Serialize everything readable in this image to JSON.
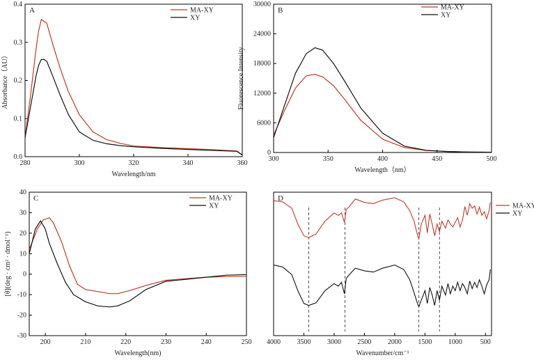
{
  "chart_data": [
    {
      "panel": "A",
      "type": "line",
      "xlabel": "Wavelength/nm",
      "ylabel": "Absorbance（AU）",
      "xlim": [
        280,
        360
      ],
      "ylim": [
        0,
        0.4
      ],
      "xticks": [
        280,
        300,
        320,
        340,
        360
      ],
      "yticks": [
        0.0,
        0.1,
        0.2,
        0.3,
        0.4
      ],
      "ytick_labels": [
        "0.0",
        "0.1",
        "0.2",
        "0.3",
        "0.4"
      ],
      "legend": [
        "MA-XY",
        "XY"
      ],
      "series": [
        {
          "name": "MA-XY",
          "color": "#c0392b",
          "x": [
            280,
            282,
            284,
            285,
            286,
            287,
            288,
            290,
            293,
            296,
            300,
            305,
            310,
            315,
            320,
            330,
            340,
            350,
            358,
            360
          ],
          "y": [
            0.05,
            0.16,
            0.28,
            0.33,
            0.36,
            0.355,
            0.35,
            0.3,
            0.23,
            0.17,
            0.11,
            0.065,
            0.045,
            0.035,
            0.028,
            0.024,
            0.021,
            0.018,
            0.015,
            0.005
          ]
        },
        {
          "name": "XY",
          "color": "#111111",
          "x": [
            280,
            282,
            284,
            285,
            286,
            287,
            288,
            290,
            293,
            296,
            300,
            305,
            310,
            315,
            320,
            330,
            340,
            350,
            358,
            360
          ],
          "y": [
            0.05,
            0.13,
            0.21,
            0.24,
            0.255,
            0.255,
            0.25,
            0.215,
            0.16,
            0.11,
            0.065,
            0.043,
            0.034,
            0.029,
            0.026,
            0.022,
            0.019,
            0.016,
            0.014,
            0.004
          ]
        }
      ]
    },
    {
      "panel": "B",
      "type": "line",
      "xlabel": "Wavelength（nm）",
      "ylabel": "Fluorescence Intensity",
      "xlim": [
        300,
        500
      ],
      "ylim": [
        0,
        30000
      ],
      "xticks": [
        300,
        350,
        400,
        450,
        500
      ],
      "yticks": [
        0,
        6000,
        12000,
        18000,
        24000,
        30000
      ],
      "ytick_labels": [
        "0",
        "6000",
        "12000",
        "18000",
        "24000",
        "30000"
      ],
      "legend": [
        "MA-XY",
        "XY"
      ],
      "series": [
        {
          "name": "MA-XY",
          "color": "#c0392b",
          "x": [
            300,
            310,
            320,
            330,
            338,
            345,
            355,
            365,
            380,
            400,
            420,
            440,
            460,
            480,
            500
          ],
          "y": [
            3500,
            8500,
            13000,
            15500,
            15800,
            15300,
            13500,
            10800,
            6500,
            2700,
            1000,
            400,
            200,
            100,
            60
          ]
        },
        {
          "name": "XY",
          "color": "#111111",
          "x": [
            300,
            310,
            320,
            330,
            338,
            345,
            355,
            365,
            380,
            400,
            420,
            440,
            460,
            480,
            500
          ],
          "y": [
            3000,
            9500,
            16000,
            20000,
            21200,
            20700,
            18000,
            14500,
            9000,
            3900,
            1300,
            450,
            200,
            100,
            60
          ]
        }
      ]
    },
    {
      "panel": "C",
      "type": "line",
      "xlabel": "Wavelength(nm)",
      "ylabel": "[θ](deg · cm² · dmol⁻¹)",
      "xlim": [
        196,
        250
      ],
      "ylim": [
        -30,
        40
      ],
      "xticks": [
        200,
        210,
        220,
        230,
        240,
        250
      ],
      "yticks": [
        -30,
        -20,
        -10,
        0,
        10,
        20,
        30,
        40
      ],
      "ytick_labels": [
        "-30",
        "-20",
        "-10",
        "0",
        "10",
        "20",
        "30",
        "40"
      ],
      "legend": [
        "MA-XY",
        "XY"
      ],
      "series": [
        {
          "name": "MA-XY",
          "color": "#c0392b",
          "x": [
            196,
            198,
            199.5,
            201,
            202,
            204,
            206,
            208,
            210,
            213,
            216,
            218,
            221,
            225,
            230,
            235,
            240,
            245,
            250
          ],
          "y": [
            12,
            22,
            26.5,
            27.5,
            25,
            16,
            4,
            -5,
            -7.5,
            -8.5,
            -9.5,
            -9.5,
            -8,
            -5.5,
            -3,
            -2.2,
            -1.5,
            -1.2,
            -1
          ]
        },
        {
          "name": "XY",
          "color": "#111111",
          "x": [
            196,
            197.5,
            198.8,
            200,
            201,
            203,
            205,
            207,
            210,
            213,
            216,
            218,
            221,
            225,
            230,
            235,
            240,
            245,
            250
          ],
          "y": [
            10,
            22,
            26,
            22,
            15,
            5,
            -4,
            -10,
            -13.5,
            -15.5,
            -16,
            -15.5,
            -13,
            -7.5,
            -3.5,
            -2.5,
            -1.5,
            -0.5,
            -0.2
          ]
        }
      ]
    },
    {
      "panel": "D",
      "type": "line",
      "xlabel": "Wavenumber/cm⁻¹",
      "ylabel": "",
      "xlim": [
        4000,
        400
      ],
      "xticks": [
        4000,
        3500,
        3000,
        2500,
        2000,
        1500,
        1000,
        500
      ],
      "legend": [
        "MA-XY",
        "XY"
      ],
      "marker_lines_cm1": [
        3420,
        2820,
        1600,
        1260
      ],
      "series": [
        {
          "name": "MA-XY",
          "color": "#c0392b",
          "x": [
            4000,
            3850,
            3700,
            3600,
            3500,
            3420,
            3300,
            3150,
            3000,
            2930,
            2880,
            2830,
            2800,
            2750,
            2650,
            2500,
            2350,
            2200,
            2000,
            1850,
            1750,
            1680,
            1620,
            1600,
            1560,
            1500,
            1460,
            1420,
            1380,
            1340,
            1300,
            1260,
            1220,
            1160,
            1120,
            1080,
            1040,
            1000,
            960,
            920,
            880,
            840,
            800,
            760,
            720,
            680,
            640,
            600,
            560,
            520,
            480,
            440,
            420
          ],
          "y": [
            0.95,
            0.93,
            0.82,
            0.55,
            0.35,
            0.32,
            0.38,
            0.6,
            0.74,
            0.7,
            0.74,
            0.58,
            0.8,
            0.85,
            0.98,
            0.92,
            0.9,
            0.96,
            1.0,
            0.93,
            0.78,
            0.6,
            0.35,
            0.3,
            0.55,
            0.7,
            0.4,
            0.72,
            0.55,
            0.35,
            0.55,
            0.42,
            0.6,
            0.48,
            0.62,
            0.55,
            0.5,
            0.58,
            0.66,
            0.5,
            0.62,
            0.85,
            0.7,
            0.9,
            0.82,
            0.86,
            0.72,
            0.84,
            0.7,
            0.76,
            0.64,
            0.78,
            0.92
          ]
        },
        {
          "name": "XY",
          "color": "#111111",
          "x": [
            4000,
            3850,
            3700,
            3600,
            3500,
            3420,
            3300,
            3150,
            3000,
            2930,
            2880,
            2830,
            2800,
            2750,
            2650,
            2500,
            2350,
            2200,
            2000,
            1850,
            1750,
            1680,
            1620,
            1600,
            1560,
            1500,
            1460,
            1420,
            1380,
            1340,
            1300,
            1260,
            1220,
            1160,
            1120,
            1080,
            1040,
            1000,
            960,
            920,
            880,
            840,
            800,
            760,
            720,
            680,
            640,
            600,
            560,
            520,
            480,
            440,
            420
          ],
          "y": [
            0.95,
            0.92,
            0.8,
            0.55,
            0.35,
            0.32,
            0.36,
            0.55,
            0.66,
            0.62,
            0.68,
            0.5,
            0.74,
            0.8,
            0.9,
            0.86,
            0.84,
            0.9,
            0.95,
            0.88,
            0.72,
            0.52,
            0.34,
            0.3,
            0.4,
            0.55,
            0.35,
            0.6,
            0.48,
            0.32,
            0.55,
            0.4,
            0.62,
            0.48,
            0.66,
            0.5,
            0.62,
            0.55,
            0.68,
            0.55,
            0.66,
            0.6,
            0.5,
            0.7,
            0.58,
            0.68,
            0.6,
            0.72,
            0.62,
            0.5,
            0.64,
            0.72,
            0.88
          ]
        }
      ]
    }
  ]
}
